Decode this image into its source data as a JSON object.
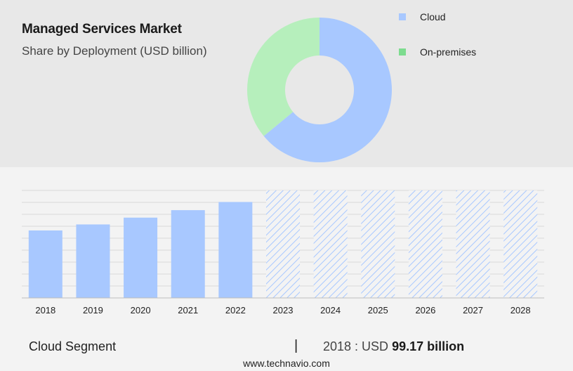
{
  "header": {
    "title": "Managed Services Market",
    "subtitle": "Share by Deployment (USD billion)"
  },
  "legend": [
    {
      "label": "Cloud",
      "color": "#a8c8ff"
    },
    {
      "label": "On-premises",
      "color": "#7ddc8f"
    }
  ],
  "chart_data": [
    {
      "type": "pie",
      "style": "donut",
      "categories": [
        "Cloud",
        "On-premises"
      ],
      "values": [
        64,
        36
      ],
      "colors": [
        "#a8c8ff",
        "#b6efbc"
      ]
    },
    {
      "type": "bar",
      "categories": [
        "2018",
        "2019",
        "2020",
        "2021",
        "2022",
        "2023",
        "2024",
        "2025",
        "2026",
        "2027",
        "2028"
      ],
      "values": [
        99.17,
        108,
        118,
        129,
        141,
        null,
        null,
        null,
        null,
        null,
        null
      ],
      "forecast_categories": [
        "2023",
        "2024",
        "2025",
        "2026",
        "2027",
        "2028"
      ],
      "forecast_style": "hatched",
      "bar_color": "#a8c8ff",
      "ylim": [
        0,
        158
      ],
      "grid": true
    }
  ],
  "footer": {
    "segment": "Cloud Segment",
    "separator": "|",
    "year_label": "2018 : USD",
    "amount": "99.17 billion",
    "url": "www.technavio.com"
  }
}
